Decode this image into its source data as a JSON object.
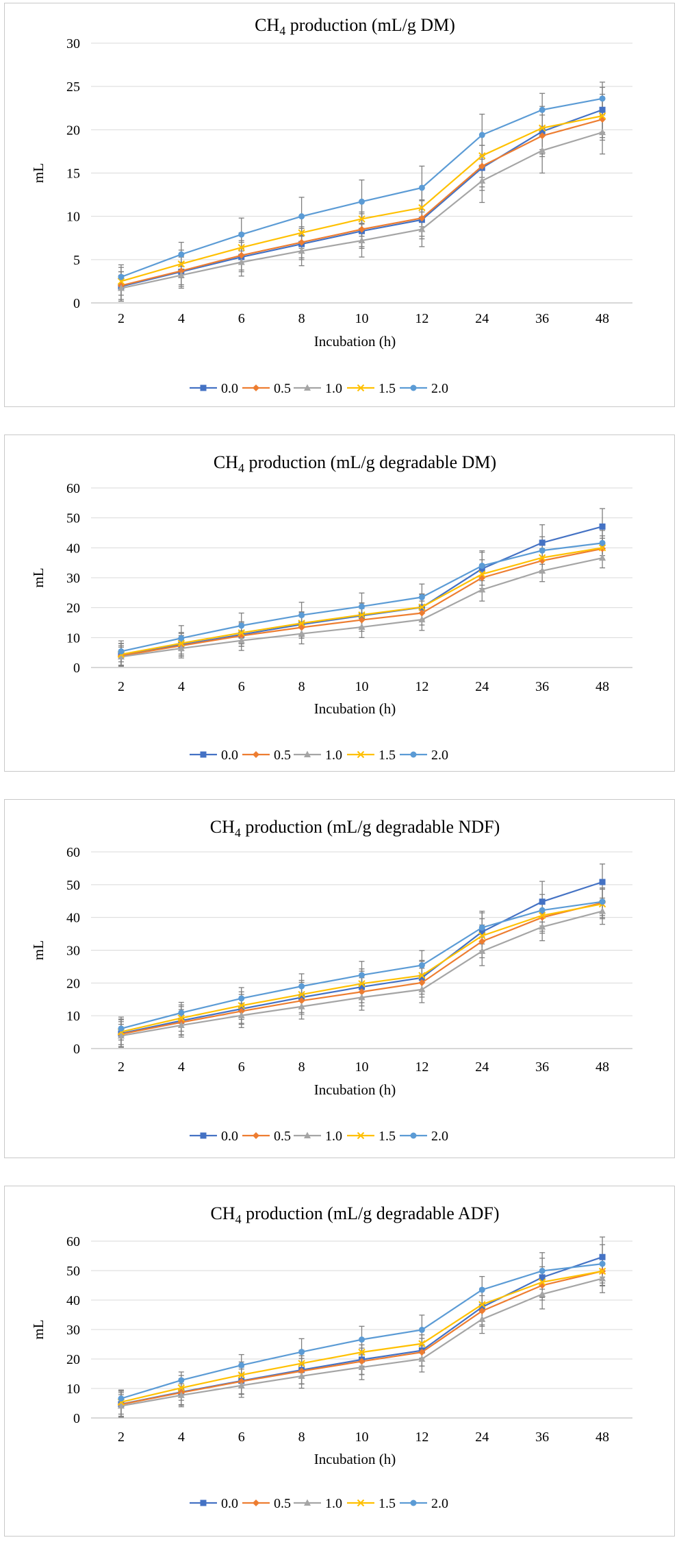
{
  "chart_data": [
    {
      "type": "line",
      "title": "CH₄ production (mL/g DM)",
      "xlabel": "Incubation (h)",
      "ylabel": "mL",
      "categories": [
        "2",
        "4",
        "6",
        "8",
        "10",
        "12",
        "24",
        "36",
        "48"
      ],
      "ylim": [
        0,
        30
      ],
      "yticks": [
        0,
        5,
        10,
        15,
        20,
        25,
        30
      ],
      "grid": true,
      "legend": "bottom",
      "series": [
        {
          "name": "0.0",
          "color": "#4472C4",
          "marker": "square",
          "values": [
            1.9,
            3.6,
            5.3,
            6.8,
            8.3,
            9.6,
            15.6,
            19.8,
            22.3
          ],
          "err": [
            1.7,
            1.7,
            1.7,
            1.8,
            2.0,
            2.2,
            2.6,
            2.6,
            2.6
          ]
        },
        {
          "name": "0.5",
          "color": "#ED7D31",
          "marker": "diamond",
          "values": [
            2.0,
            3.7,
            5.5,
            7.0,
            8.5,
            9.8,
            15.8,
            19.3,
            21.2
          ],
          "err": [
            1.6,
            1.6,
            1.7,
            1.8,
            2.0,
            2.1,
            2.4,
            2.4,
            2.4
          ]
        },
        {
          "name": "1.0",
          "color": "#A5A5A5",
          "marker": "triangle",
          "values": [
            1.7,
            3.2,
            4.7,
            6.0,
            7.2,
            8.5,
            14.1,
            17.6,
            19.7
          ],
          "err": [
            1.5,
            1.5,
            1.6,
            1.7,
            1.9,
            2.0,
            2.5,
            2.6,
            2.5
          ]
        },
        {
          "name": "1.5",
          "color": "#FFC000",
          "marker": "x",
          "values": [
            2.5,
            4.5,
            6.4,
            8.1,
            9.7,
            11.0,
            17.0,
            20.2,
            21.6
          ],
          "err": [
            1.6,
            1.6,
            1.7,
            1.8,
            2.0,
            2.2,
            2.5,
            2.5,
            2.5
          ]
        },
        {
          "name": "2.0",
          "color": "#5B9BD5",
          "marker": "circle",
          "values": [
            3.0,
            5.6,
            7.9,
            10.0,
            11.7,
            13.3,
            19.4,
            22.3,
            23.6
          ],
          "err": [
            1.4,
            1.4,
            1.9,
            2.2,
            2.5,
            2.5,
            2.4,
            1.9,
            1.9
          ]
        }
      ]
    },
    {
      "type": "line",
      "title": "CH₄ production (mL/g degradable DM)",
      "xlabel": "Incubation (h)",
      "ylabel": "mL",
      "categories": [
        "2",
        "4",
        "6",
        "8",
        "10",
        "12",
        "24",
        "36",
        "48"
      ],
      "ylim": [
        0,
        60
      ],
      "yticks": [
        0,
        10,
        20,
        30,
        40,
        50,
        60
      ],
      "grid": true,
      "legend": "bottom",
      "series": [
        {
          "name": "0.0",
          "color": "#4472C4",
          "marker": "square",
          "values": [
            4.3,
            7.6,
            11.0,
            14.4,
            17.3,
            20.1,
            33.0,
            41.7,
            47.1
          ],
          "err": [
            3.8,
            3.8,
            3.9,
            4.0,
            4.2,
            4.5,
            5.5,
            6.0,
            6.0
          ]
        },
        {
          "name": "0.5",
          "color": "#ED7D31",
          "marker": "diamond",
          "values": [
            3.9,
            7.3,
            10.6,
            13.4,
            15.9,
            18.2,
            30.0,
            35.7,
            39.7
          ],
          "err": [
            3.4,
            3.4,
            3.5,
            3.6,
            3.8,
            4.0,
            4.5,
            4.0,
            3.5
          ]
        },
        {
          "name": "1.0",
          "color": "#A5A5A5",
          "marker": "triangle",
          "values": [
            3.6,
            6.4,
            9.0,
            11.3,
            13.5,
            16.0,
            26.0,
            32.3,
            36.6
          ],
          "err": [
            3.2,
            3.2,
            3.3,
            3.4,
            3.5,
            3.6,
            3.8,
            3.6,
            3.3
          ]
        },
        {
          "name": "1.5",
          "color": "#FFC000",
          "marker": "x",
          "values": [
            4.4,
            8.1,
            11.6,
            14.8,
            17.6,
            20.2,
            31.2,
            36.7,
            40.0
          ],
          "err": [
            3.6,
            3.6,
            3.7,
            3.8,
            4.0,
            4.2,
            4.8,
            4.3,
            4.0
          ]
        },
        {
          "name": "2.0",
          "color": "#5B9BD5",
          "marker": "circle",
          "values": [
            5.4,
            9.8,
            14.0,
            17.5,
            20.4,
            23.5,
            34.0,
            39.1,
            41.6
          ],
          "err": [
            3.5,
            4.2,
            4.2,
            4.3,
            4.5,
            4.4,
            5.0,
            4.6,
            4.2
          ]
        }
      ]
    },
    {
      "type": "line",
      "title": "CH₄ production (mL/g degradable NDF)",
      "xlabel": "Incubation (h)",
      "ylabel": "mL",
      "categories": [
        "2",
        "4",
        "6",
        "8",
        "10",
        "12",
        "24",
        "36",
        "48"
      ],
      "ylim": [
        0,
        60
      ],
      "yticks": [
        0,
        10,
        20,
        30,
        40,
        50,
        60
      ],
      "grid": true,
      "legend": "bottom",
      "series": [
        {
          "name": "0.0",
          "color": "#4472C4",
          "marker": "square",
          "values": [
            4.6,
            8.5,
            12.1,
            15.6,
            18.8,
            21.6,
            35.6,
            44.8,
            50.8
          ],
          "err": [
            4.2,
            4.3,
            4.4,
            4.6,
            4.8,
            5.0,
            5.8,
            6.2,
            5.5
          ]
        },
        {
          "name": "0.5",
          "color": "#ED7D31",
          "marker": "diamond",
          "values": [
            4.4,
            8.0,
            11.4,
            14.6,
            17.3,
            20.1,
            32.7,
            40.0,
            44.5
          ],
          "err": [
            3.8,
            3.9,
            4.0,
            4.1,
            4.3,
            4.4,
            5.0,
            4.8,
            4.5
          ]
        },
        {
          "name": "1.0",
          "color": "#A5A5A5",
          "marker": "triangle",
          "values": [
            3.9,
            7.1,
            10.1,
            12.8,
            15.6,
            18.0,
            29.7,
            37.1,
            41.9
          ],
          "err": [
            3.5,
            3.6,
            3.7,
            3.8,
            3.9,
            4.0,
            4.4,
            4.2,
            4.0
          ]
        },
        {
          "name": "1.5",
          "color": "#FFC000",
          "marker": "x",
          "values": [
            5.1,
            9.3,
            13.1,
            16.5,
            19.8,
            22.3,
            34.4,
            40.6,
            44.1
          ],
          "err": [
            3.9,
            4.0,
            4.2,
            4.3,
            4.5,
            4.6,
            5.2,
            4.8,
            4.5
          ]
        },
        {
          "name": "2.0",
          "color": "#5B9BD5",
          "marker": "circle",
          "values": [
            6.1,
            10.9,
            15.3,
            19.0,
            22.4,
            25.4,
            36.9,
            42.2,
            44.8
          ],
          "err": [
            3.5,
            3.2,
            3.3,
            3.8,
            4.2,
            4.5,
            5.0,
            4.8,
            4.2
          ]
        }
      ]
    },
    {
      "type": "line",
      "title": "CH₄ production (mL/g degradable ADF)",
      "xlabel": "Incubation (h)",
      "ylabel": "mL",
      "categories": [
        "2",
        "4",
        "6",
        "8",
        "10",
        "12",
        "24",
        "36",
        "48"
      ],
      "ylim": [
        0,
        60
      ],
      "yticks": [
        0,
        10,
        20,
        30,
        40,
        50,
        60
      ],
      "grid": true,
      "legend": "bottom",
      "series": [
        {
          "name": "0.0",
          "color": "#4472C4",
          "marker": "square",
          "values": [
            4.7,
            8.8,
            12.6,
            16.3,
            19.8,
            22.9,
            37.6,
            47.7,
            54.6
          ],
          "err": [
            4.4,
            4.5,
            4.6,
            4.8,
            5.0,
            5.3,
            6.0,
            6.5,
            6.8
          ]
        },
        {
          "name": "0.5",
          "color": "#ED7D31",
          "marker": "diamond",
          "values": [
            4.6,
            8.6,
            12.4,
            15.9,
            19.2,
            22.3,
            36.3,
            45.0,
            49.8
          ],
          "err": [
            4.0,
            4.1,
            4.2,
            4.3,
            4.5,
            4.7,
            5.2,
            5.0,
            4.8
          ]
        },
        {
          "name": "1.0",
          "color": "#A5A5A5",
          "marker": "triangle",
          "values": [
            4.1,
            7.7,
            11.0,
            14.2,
            17.2,
            20.0,
            33.5,
            42.0,
            47.3
          ],
          "err": [
            3.8,
            3.9,
            4.0,
            4.1,
            4.2,
            4.4,
            4.8,
            5.0,
            4.8
          ]
        },
        {
          "name": "1.5",
          "color": "#FFC000",
          "marker": "x",
          "values": [
            5.4,
            10.2,
            14.6,
            18.5,
            22.3,
            25.2,
            38.5,
            46.1,
            49.8
          ],
          "err": [
            4.1,
            4.2,
            4.4,
            4.5,
            4.7,
            4.9,
            5.5,
            5.2,
            5.0
          ]
        },
        {
          "name": "2.0",
          "color": "#5B9BD5",
          "marker": "circle",
          "values": [
            6.6,
            12.8,
            17.9,
            22.4,
            26.6,
            29.9,
            43.5,
            49.9,
            52.3
          ],
          "err": [
            2.6,
            2.8,
            3.6,
            4.5,
            4.5,
            5.0,
            4.5,
            6.2,
            6.5
          ]
        }
      ]
    }
  ]
}
